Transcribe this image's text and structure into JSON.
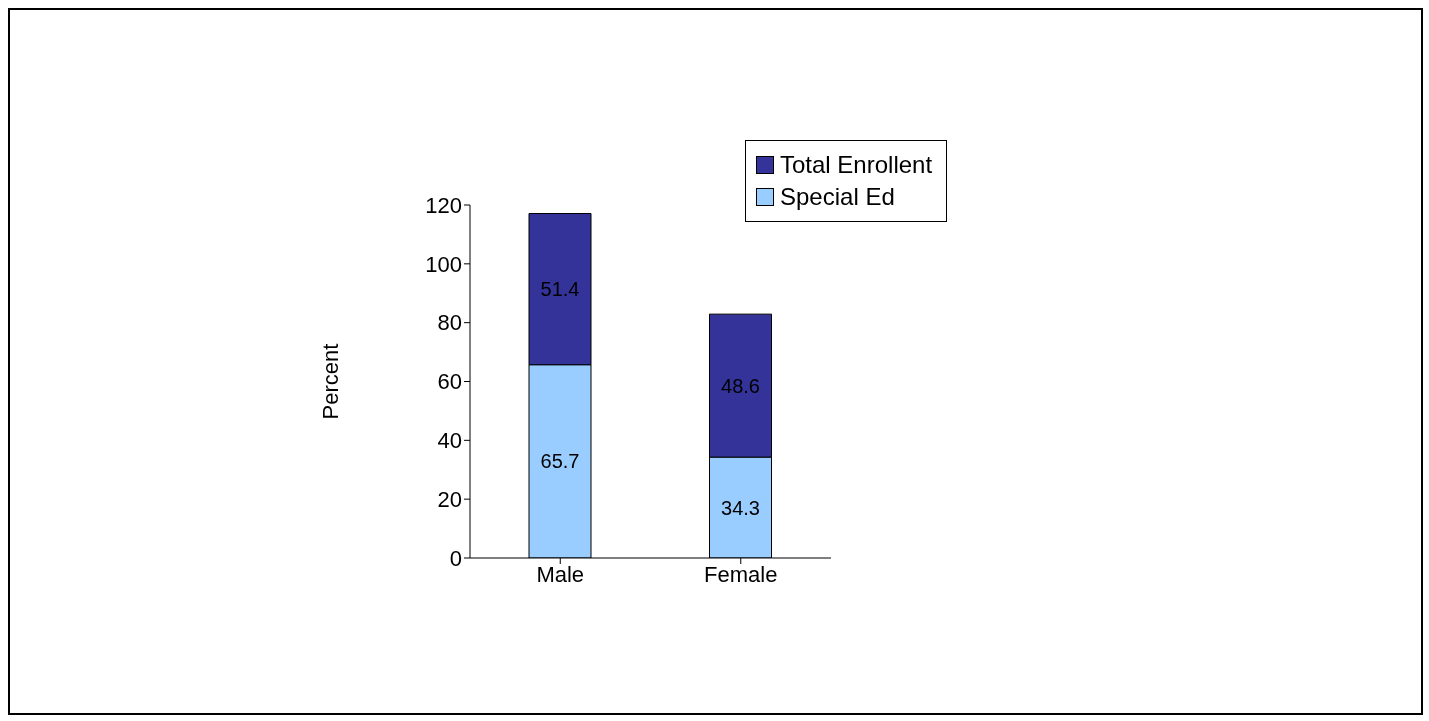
{
  "chart_data": {
    "type": "bar",
    "stacked": true,
    "ylabel": "Percent",
    "categories": [
      "Male",
      "Female"
    ],
    "series": [
      {
        "name": "Special Ed",
        "color": "#99ccff",
        "values": [
          65.7,
          34.3
        ]
      },
      {
        "name": "Total Enrollent",
        "color": "#333399",
        "values": [
          51.4,
          48.6
        ]
      }
    ],
    "ylim": [
      0,
      120
    ],
    "yticks": [
      0,
      20,
      40,
      60,
      80,
      100,
      120
    ],
    "grid": false,
    "legend": "top right",
    "data_labels": true
  }
}
